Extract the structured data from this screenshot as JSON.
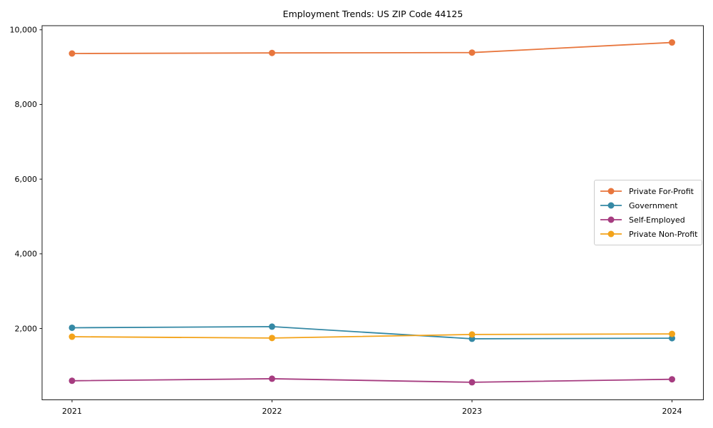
{
  "chart_data": {
    "type": "line",
    "title": "Employment Trends: US ZIP Code 44125",
    "xlabel": "",
    "ylabel": "",
    "x": [
      "2021",
      "2022",
      "2023",
      "2024"
    ],
    "series": [
      {
        "name": "Private For-Profit",
        "color": "#e8763d",
        "values": [
          9365,
          9380,
          9390,
          9660
        ]
      },
      {
        "name": "Government",
        "color": "#3589a5",
        "values": [
          2020,
          2050,
          1725,
          1740
        ]
      },
      {
        "name": "Self-Employed",
        "color": "#a63c80",
        "values": [
          600,
          655,
          560,
          640
        ]
      },
      {
        "name": "Private Non-Profit",
        "color": "#f3a31a",
        "values": [
          1780,
          1745,
          1840,
          1855
        ]
      }
    ],
    "yticks": [
      {
        "value": 2000,
        "label": "2,000"
      },
      {
        "value": 4000,
        "label": "4,000"
      },
      {
        "value": 6000,
        "label": "6,000"
      },
      {
        "value": 8000,
        "label": "8,000"
      },
      {
        "value": 10000,
        "label": "10,000"
      }
    ],
    "ylim": [
      90,
      10110
    ],
    "grid": false,
    "marker": "circle",
    "legend_position": "center-right",
    "axis_color": "#1a1a1a",
    "legend_border_color": "#cccccc"
  }
}
